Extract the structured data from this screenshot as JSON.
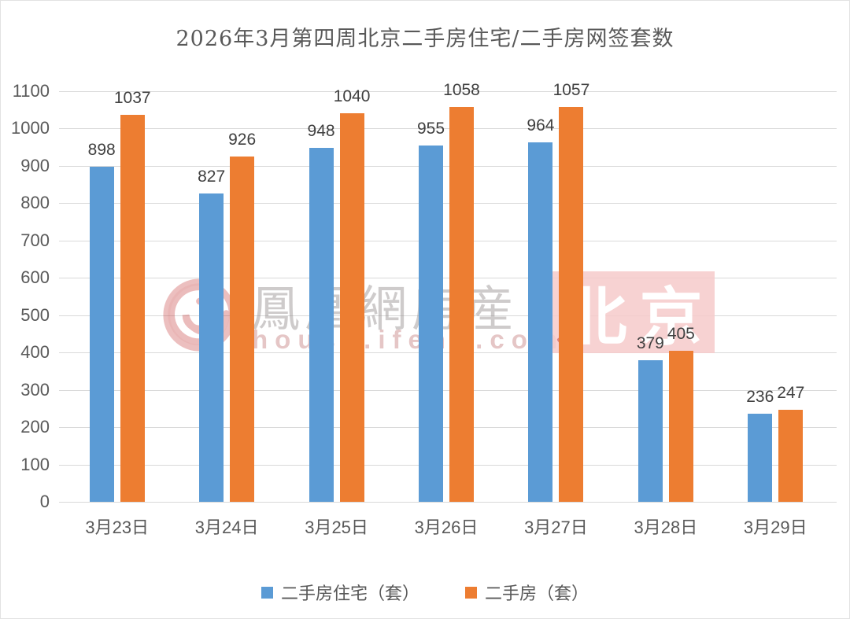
{
  "title": "2026年3月第四周北京二手房住宅/二手房网签套数",
  "watermark": {
    "brand_text": "鳳凰網房産",
    "url_text": "house.ifeng.com",
    "badge_text": "北京",
    "badge_bg": "rgba(246,202,202,0.85)",
    "logo_color": "#c43c3c"
  },
  "colors": {
    "grid": "#d9d9d9",
    "axis_text": "#595959",
    "data_label": "#404040",
    "title_text": "#595959"
  },
  "chart_data": {
    "type": "bar",
    "title": "2026年3月第四周北京二手房住宅/二手房网签套数",
    "categories": [
      "3月23日",
      "3月24日",
      "3月25日",
      "3月26日",
      "3月27日",
      "3月28日",
      "3月29日"
    ],
    "series": [
      {
        "name": "二手房住宅（套）",
        "color": "#5B9BD5",
        "values": [
          898,
          827,
          948,
          955,
          964,
          379,
          236
        ]
      },
      {
        "name": "二手房（套）",
        "color": "#ED7D31",
        "values": [
          1037,
          926,
          1040,
          1058,
          1057,
          405,
          247
        ]
      }
    ],
    "xlabel": "",
    "ylabel": "",
    "ylim": [
      0,
      1100
    ],
    "ytick_step": 100,
    "grid": true,
    "legend_position": "bottom",
    "data_labels": true
  }
}
